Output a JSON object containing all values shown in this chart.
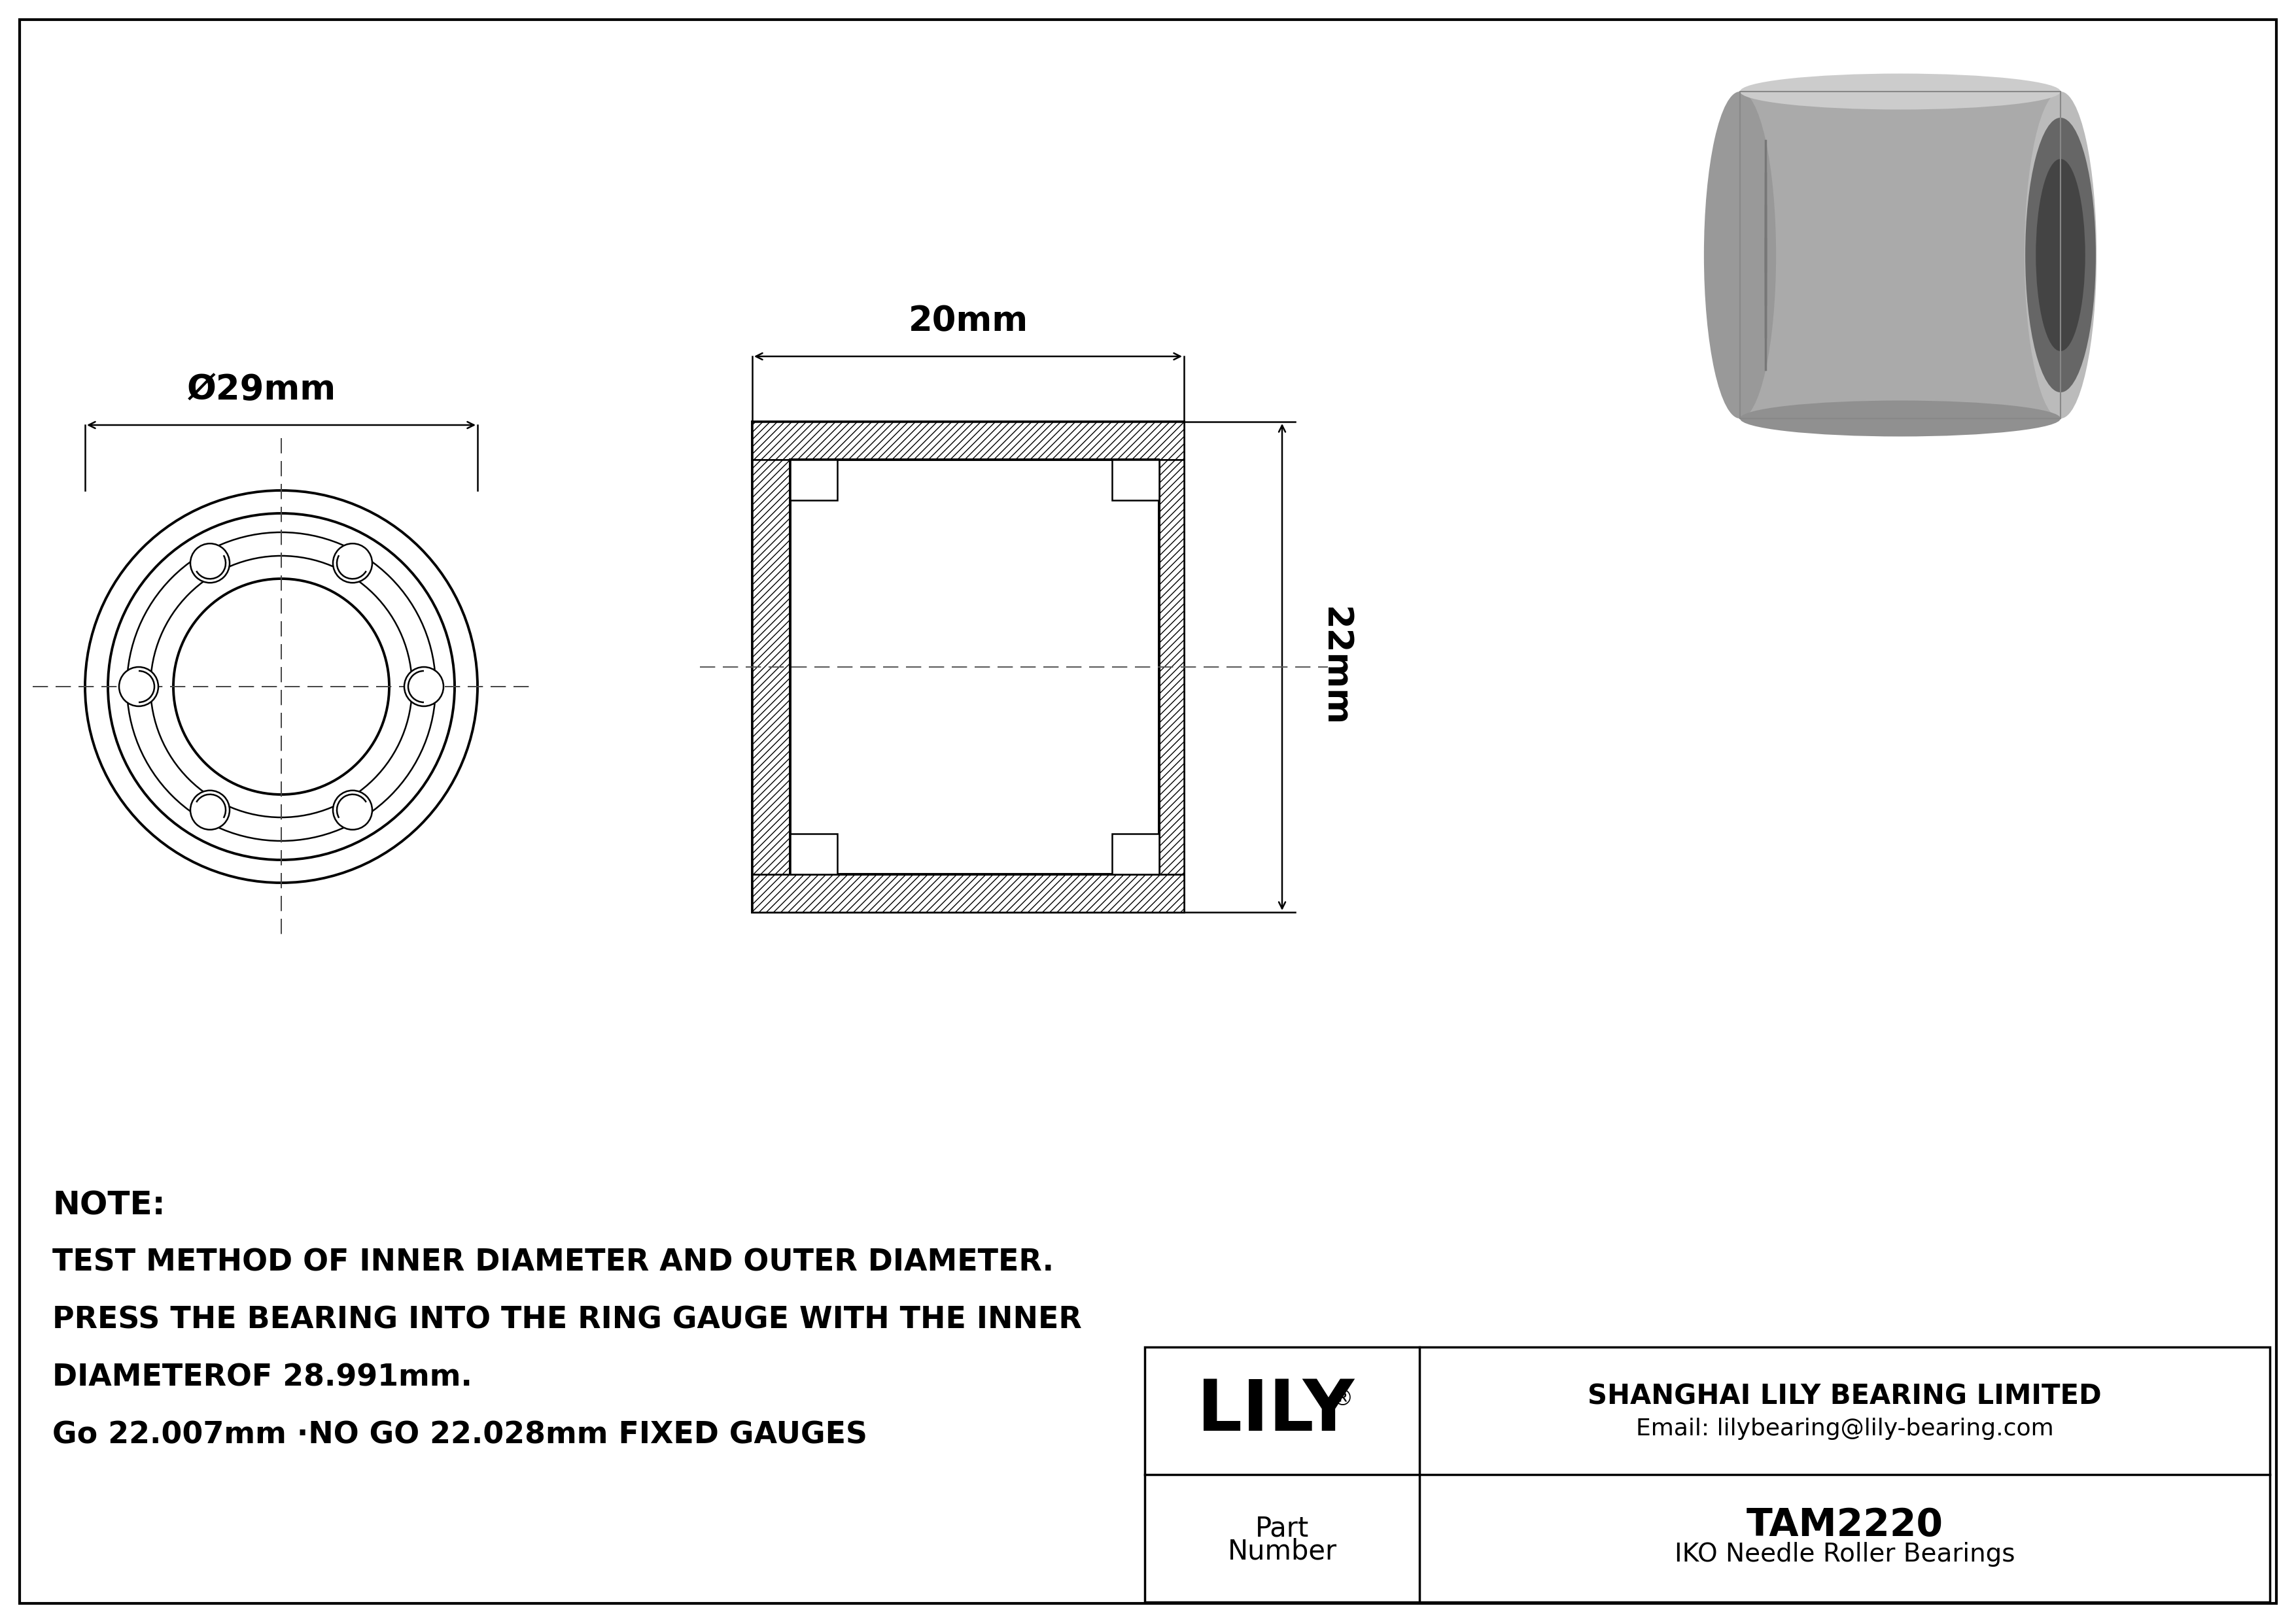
{
  "bg_color": "#ffffff",
  "line_color": "#000000",
  "note_lines": [
    "NOTE:",
    "TEST METHOD OF INNER DIAMETER AND OUTER DIAMETER.",
    "PRESS THE BEARING INTO THE RING GAUGE WITH THE INNER",
    "DIAMETEROF 28.991mm.",
    "Go 22.007mm ·NO GO 22.028mm FIXED GAUGES"
  ],
  "company_name": "SHANGHAI LILY BEARING LIMITED",
  "company_email": "Email: lilybearing@lily-bearing.com",
  "brand": "LILY",
  "brand_reg": "®",
  "part_number": "TAM2220",
  "part_desc": "IKO Needle Roller Bearings",
  "dim_outer": "Ø29mm",
  "dim_width": "20mm",
  "dim_height": "22mm"
}
